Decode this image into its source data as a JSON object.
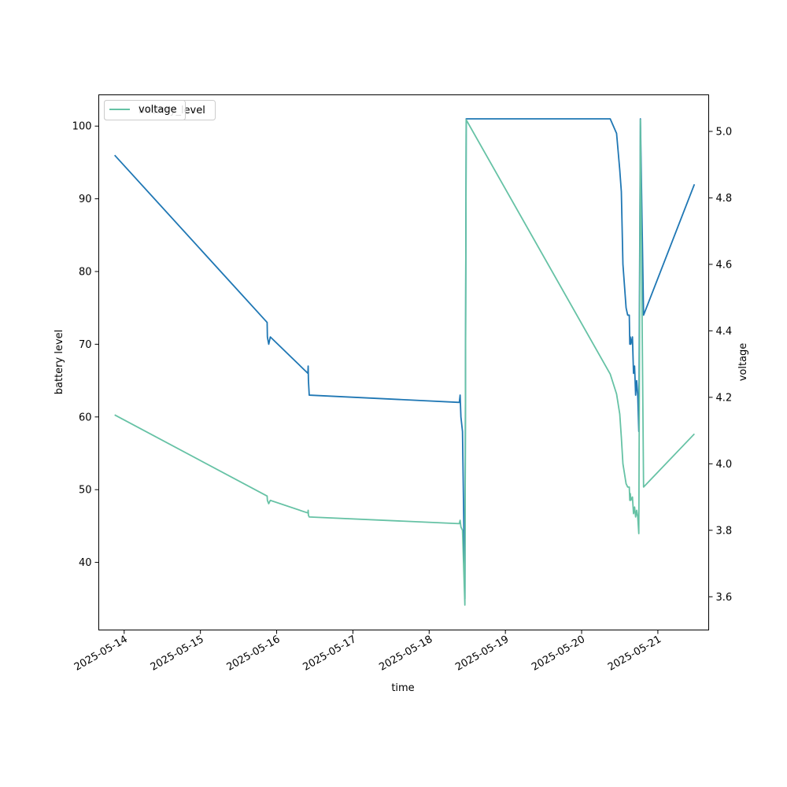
{
  "chart_data": {
    "type": "line",
    "title": "",
    "xlabel": "time",
    "ylabel_left": "battery level",
    "ylabel_right": "voltage",
    "x_ticks": [
      "2025-05-14",
      "2025-05-15",
      "2025-05-16",
      "2025-05-17",
      "2025-05-18",
      "2025-05-19",
      "2025-05-20",
      "2025-05-21"
    ],
    "xlim": [
      "2025-05-13 16:00",
      "2025-05-21 16:00"
    ],
    "y_left_ticks": [
      40,
      50,
      60,
      70,
      80,
      90,
      100
    ],
    "y_left_lim": [
      30.7,
      104.3
    ],
    "y_right_ticks": [
      "3.6",
      "3.8",
      "4.0",
      "4.2",
      "4.4",
      "4.6",
      "4.8",
      "5.0"
    ],
    "y_right_lim": [
      3.5,
      5.11
    ],
    "grid": false,
    "legend": {
      "placement": "upper-left",
      "entries": [
        "battery_level",
        "voltage"
      ]
    },
    "series": [
      {
        "name": "battery_level",
        "axis": "left",
        "color": "#1f77b4",
        "points": [
          [
            "2025-05-13 21:00",
            96
          ],
          [
            "2025-05-15 21:00",
            73
          ],
          [
            "2025-05-15 21:05",
            71
          ],
          [
            "2025-05-15 21:30",
            70
          ],
          [
            "2025-05-15 22:00",
            71
          ],
          [
            "2025-05-16 09:50",
            66
          ],
          [
            "2025-05-16 09:55",
            67
          ],
          [
            "2025-05-16 10:00",
            65
          ],
          [
            "2025-05-16 10:15",
            63
          ],
          [
            "2025-05-18 09:30",
            62
          ],
          [
            "2025-05-18 09:45",
            63
          ],
          [
            "2025-05-18 10:00",
            60
          ],
          [
            "2025-05-18 10:30",
            58
          ],
          [
            "2025-05-18 11:15",
            35
          ],
          [
            "2025-05-18 11:40",
            101
          ],
          [
            "2025-05-20 09:00",
            101
          ],
          [
            "2025-05-20 11:00",
            99
          ],
          [
            "2025-05-20 12:00",
            94
          ],
          [
            "2025-05-20 12:30",
            91
          ],
          [
            "2025-05-20 13:00",
            81
          ],
          [
            "2025-05-20 14:00",
            75
          ],
          [
            "2025-05-20 14:30",
            74
          ],
          [
            "2025-05-20 15:00",
            74
          ],
          [
            "2025-05-20 15:10",
            70
          ],
          [
            "2025-05-20 15:20",
            71
          ],
          [
            "2025-05-20 15:30",
            70
          ],
          [
            "2025-05-20 16:00",
            71
          ],
          [
            "2025-05-20 16:20",
            66
          ],
          [
            "2025-05-20 16:40",
            67
          ],
          [
            "2025-05-20 17:00",
            63
          ],
          [
            "2025-05-20 17:20",
            65
          ],
          [
            "2025-05-20 17:40",
            63
          ],
          [
            "2025-05-20 18:00",
            58
          ],
          [
            "2025-05-20 18:30",
            101
          ],
          [
            "2025-05-20 19:30",
            74
          ],
          [
            "2025-05-21 11:30",
            92
          ]
        ]
      },
      {
        "name": "voltage",
        "axis": "right",
        "color": "#66c2a5",
        "points": [
          [
            "2025-05-13 21:00",
            4.147
          ],
          [
            "2025-05-15 21:00",
            3.903
          ],
          [
            "2025-05-15 21:05",
            3.89
          ],
          [
            "2025-05-15 21:30",
            3.88
          ],
          [
            "2025-05-15 22:00",
            3.89
          ],
          [
            "2025-05-16 09:50",
            3.852
          ],
          [
            "2025-05-16 09:55",
            3.86
          ],
          [
            "2025-05-16 10:00",
            3.845
          ],
          [
            "2025-05-16 10:15",
            3.84
          ],
          [
            "2025-05-18 09:30",
            3.82
          ],
          [
            "2025-05-18 09:45",
            3.83
          ],
          [
            "2025-05-18 10:00",
            3.81
          ],
          [
            "2025-05-18 10:30",
            3.8
          ],
          [
            "2025-05-18 11:15",
            3.575
          ],
          [
            "2025-05-18 11:40",
            5.035
          ],
          [
            "2025-05-20 09:00",
            4.27
          ],
          [
            "2025-05-20 11:00",
            4.21
          ],
          [
            "2025-05-20 12:00",
            4.15
          ],
          [
            "2025-05-20 12:30",
            4.08
          ],
          [
            "2025-05-20 13:00",
            4.0
          ],
          [
            "2025-05-20 14:00",
            3.94
          ],
          [
            "2025-05-20 14:30",
            3.93
          ],
          [
            "2025-05-20 15:00",
            3.93
          ],
          [
            "2025-05-20 15:10",
            3.89
          ],
          [
            "2025-05-20 15:20",
            3.91
          ],
          [
            "2025-05-20 15:30",
            3.89
          ],
          [
            "2025-05-20 16:00",
            3.9
          ],
          [
            "2025-05-20 16:20",
            3.85
          ],
          [
            "2025-05-20 16:40",
            3.87
          ],
          [
            "2025-05-20 17:00",
            3.84
          ],
          [
            "2025-05-20 17:20",
            3.86
          ],
          [
            "2025-05-20 17:40",
            3.84
          ],
          [
            "2025-05-20 18:00",
            3.79
          ],
          [
            "2025-05-20 18:30",
            5.035
          ],
          [
            "2025-05-20 19:30",
            3.93
          ],
          [
            "2025-05-21 11:30",
            4.09
          ]
        ]
      }
    ]
  }
}
